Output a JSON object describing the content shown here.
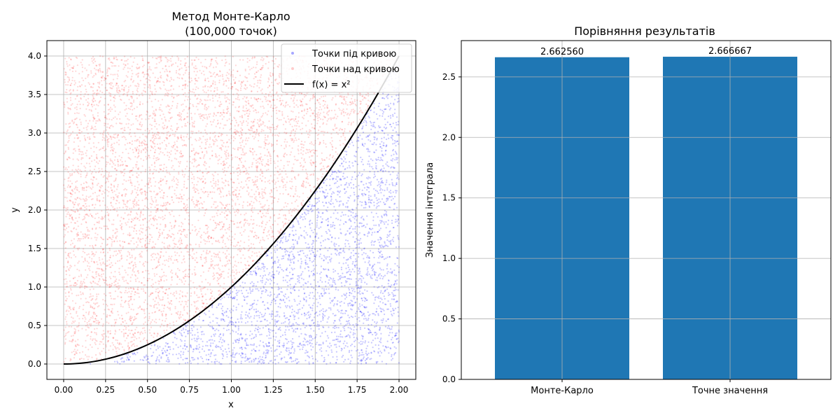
{
  "chart_data": [
    {
      "type": "scatter",
      "title": "Метод Монте-Карло",
      "subtitle": "(100,000 точок)",
      "xlabel": "x",
      "ylabel": "y",
      "xlim": [
        -0.1,
        2.1
      ],
      "ylim": [
        -0.2,
        4.2
      ],
      "grid": true,
      "x_ticks": [
        0.0,
        0.25,
        0.5,
        0.75,
        1.0,
        1.25,
        1.5,
        1.75,
        2.0
      ],
      "x_tick_labels": [
        "0.00",
        "0.25",
        "0.50",
        "0.75",
        "1.00",
        "1.25",
        "1.50",
        "1.75",
        "2.00"
      ],
      "y_ticks": [
        0.0,
        0.5,
        1.0,
        1.5,
        2.0,
        2.5,
        3.0,
        3.5,
        4.0
      ],
      "y_tick_labels": [
        "0.0",
        "0.5",
        "1.0",
        "1.5",
        "2.0",
        "2.5",
        "3.0",
        "3.5",
        "4.0"
      ],
      "sampling_region": {
        "x": [
          0,
          2
        ],
        "y": [
          0,
          4
        ]
      },
      "total_points": 100000,
      "legend_position": "top-right",
      "series": [
        {
          "name": "Точки під кривою",
          "kind": "scatter",
          "color": "#0000ff",
          "condition": "y <= x^2"
        },
        {
          "name": "Точки над кривою",
          "kind": "scatter",
          "color": "#ff0000",
          "condition": "y > x^2"
        },
        {
          "name": "f(x) = x²",
          "kind": "line",
          "color": "#000000",
          "function": "x^2",
          "x_range": [
            0,
            2
          ]
        }
      ]
    },
    {
      "type": "bar",
      "title": "Порівняння результатів",
      "xlabel": "",
      "ylabel": "Значення інтеграла",
      "ylim": [
        0,
        2.8
      ],
      "grid": true,
      "categories": [
        "Монте-Карло",
        "Точне значення"
      ],
      "values": [
        2.66256,
        2.666667
      ],
      "value_labels": [
        "2.662560",
        "2.666667"
      ],
      "y_ticks": [
        0.0,
        0.5,
        1.0,
        1.5,
        2.0,
        2.5
      ],
      "y_tick_labels": [
        "0.0",
        "0.5",
        "1.0",
        "1.5",
        "2.0",
        "2.5"
      ],
      "bar_color": "#1f77b4"
    }
  ]
}
